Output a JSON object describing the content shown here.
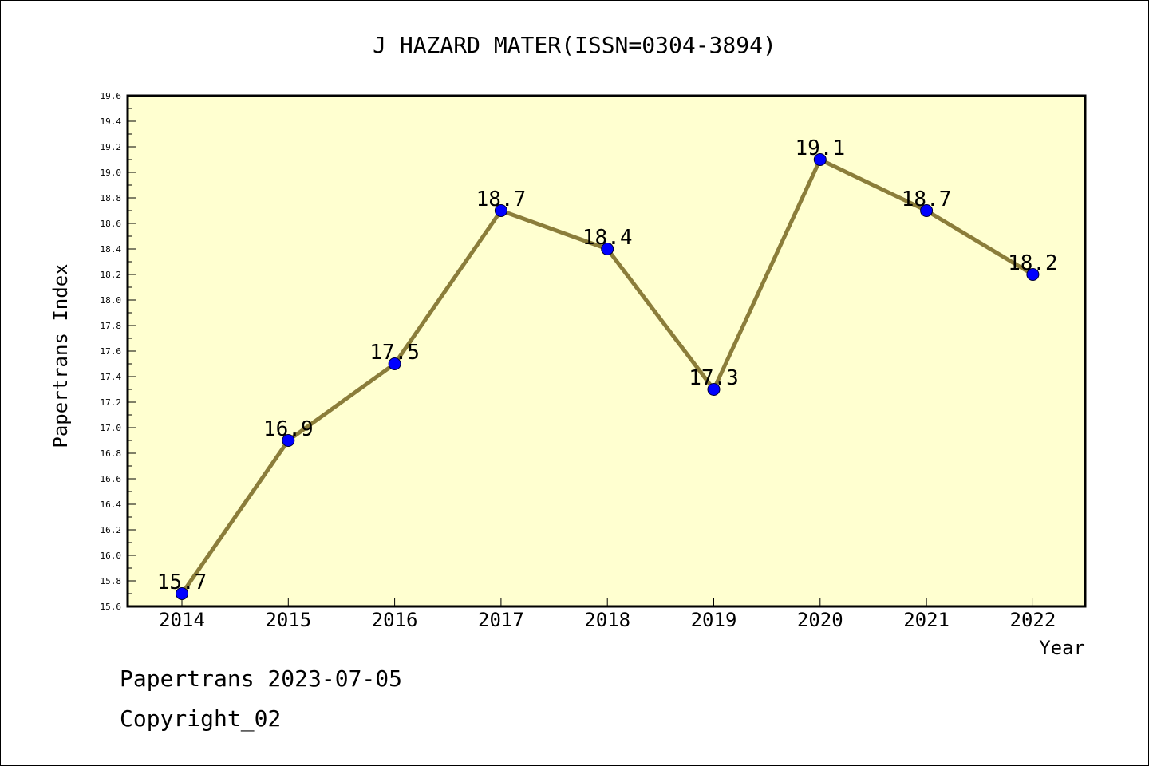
{
  "footer": {
    "line1": "Papertrans 2023-07-05",
    "line2": "Copyright_02"
  },
  "chart_data": {
    "type": "line",
    "title": "J HAZARD MATER(ISSN=0304-3894)",
    "xlabel": "Year",
    "ylabel": "Papertrans Index",
    "x": [
      "2014",
      "2015",
      "2016",
      "2017",
      "2018",
      "2019",
      "2020",
      "2021",
      "2022"
    ],
    "series": [
      {
        "values": [
          15.7,
          16.9,
          17.5,
          18.7,
          18.4,
          17.3,
          19.1,
          18.7,
          18.2
        ]
      }
    ],
    "data_labels": [
      "15.7",
      "16.9",
      "17.5",
      "18.7",
      "18.4",
      "17.3",
      "19.1",
      "18.7",
      "18.2"
    ],
    "ylim": [
      15.6,
      19.6
    ],
    "ytick_step": 0.2,
    "y_ticks": [
      "15.6",
      "15.8",
      "16.0",
      "16.2",
      "16.4",
      "16.6",
      "16.8",
      "17.0",
      "17.2",
      "17.4",
      "17.6",
      "17.8",
      "18.0",
      "18.2",
      "18.4",
      "18.6",
      "18.8",
      "19.0",
      "19.2",
      "19.4",
      "19.6"
    ],
    "grid": false,
    "legend": "none",
    "colors": {
      "plot_background": "#ffffd0",
      "line": "#8b7d3a",
      "marker": "#0000ff"
    }
  }
}
